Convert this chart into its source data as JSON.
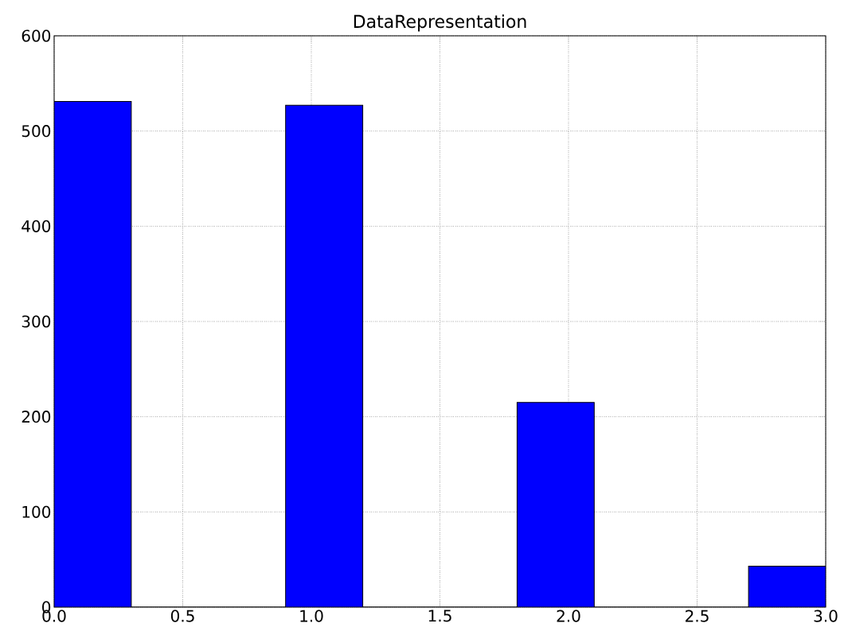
{
  "chart_data": {
    "type": "histogram",
    "title": "DataRepresentation",
    "bins": [
      0.0,
      0.3,
      0.6,
      0.9,
      1.2,
      1.5,
      1.8,
      2.1,
      2.4,
      2.7,
      3.0
    ],
    "values": [
      531,
      0,
      0,
      527,
      0,
      0,
      215,
      0,
      0,
      43
    ],
    "color": "#0000ff",
    "xlim": [
      0,
      3
    ],
    "ylim": [
      0,
      600
    ],
    "xticks": [
      {
        "value": 0,
        "label": "0.0"
      },
      {
        "value": 0.5,
        "label": "0.5"
      },
      {
        "value": 1,
        "label": "1.0"
      },
      {
        "value": 1.5,
        "label": "1.5"
      },
      {
        "value": 2,
        "label": "2.0"
      },
      {
        "value": 2.5,
        "label": "2.5"
      },
      {
        "value": 3,
        "label": "3.0"
      }
    ],
    "yticks": [
      0,
      100,
      200,
      300,
      400,
      500,
      600
    ],
    "grid": true
  }
}
